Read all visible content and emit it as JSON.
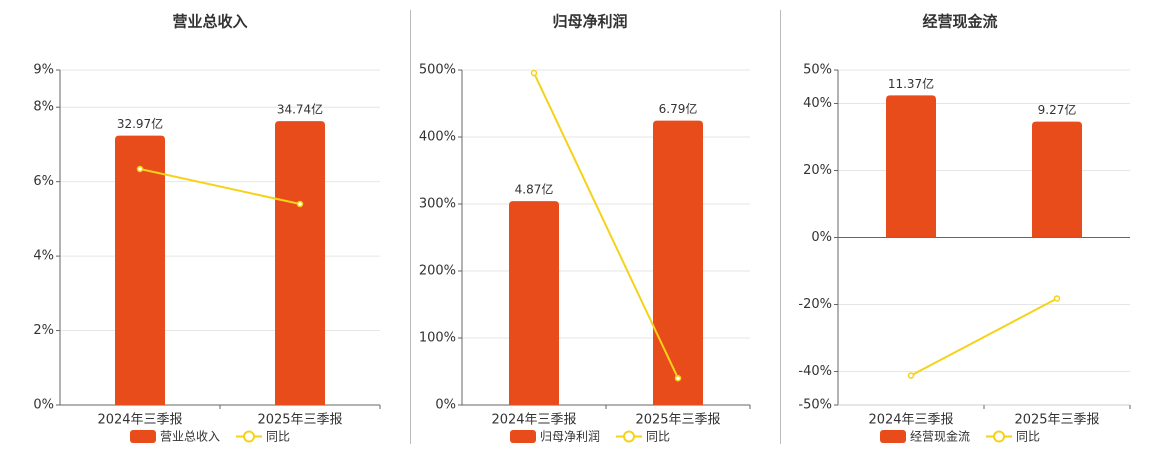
{
  "chart_data": [
    {
      "type": "combo",
      "title": "营业总收入",
      "categories": [
        "2024年三季报",
        "2025年三季报"
      ],
      "ylim": [
        0,
        9
      ],
      "yticks": [
        {
          "value": 0,
          "label": "0%"
        },
        {
          "value": 2,
          "label": "2%"
        },
        {
          "value": 4,
          "label": "4%"
        },
        {
          "value": 6,
          "label": "6%"
        },
        {
          "value": 8,
          "label": "8%"
        },
        {
          "value": 9,
          "label": "9%"
        }
      ],
      "y2lim": [
        0,
        41
      ],
      "grid": true,
      "series": [
        {
          "name": "营业总收入",
          "kind": "bar",
          "axis": "y2",
          "color": "#e84c1b",
          "values": [
            32.97,
            34.74
          ],
          "value_labels": [
            "32.97亿",
            "34.74亿"
          ]
        },
        {
          "name": "同比",
          "kind": "line",
          "color": "#f5d21a",
          "values": [
            6.34,
            5.4
          ]
        }
      ]
    },
    {
      "type": "combo",
      "title": "归母净利润",
      "categories": [
        "2024年三季报",
        "2025年三季报"
      ],
      "ylim": [
        0,
        500
      ],
      "yticks": [
        {
          "value": 0,
          "label": "0%"
        },
        {
          "value": 100,
          "label": "100%"
        },
        {
          "value": 200,
          "label": "200%"
        },
        {
          "value": 300,
          "label": "300%"
        },
        {
          "value": 400,
          "label": "400%"
        },
        {
          "value": 500,
          "label": "500%"
        }
      ],
      "y2lim": [
        0,
        8
      ],
      "grid": true,
      "series": [
        {
          "name": "归母净利润",
          "kind": "bar",
          "axis": "y2",
          "color": "#e84c1b",
          "values": [
            4.87,
            6.79
          ],
          "value_labels": [
            "4.87亿",
            "6.79亿"
          ]
        },
        {
          "name": "同比",
          "kind": "line",
          "color": "#f5d21a",
          "values": [
            495.5,
            40
          ]
        }
      ]
    },
    {
      "type": "combo",
      "title": "经营现金流",
      "categories": [
        "2024年三季报",
        "2025年三季报"
      ],
      "ylim": [
        -50,
        50
      ],
      "yticks": [
        {
          "value": -50,
          "label": "-50%"
        },
        {
          "value": -40,
          "label": "-40%"
        },
        {
          "value": -20,
          "label": "-20%"
        },
        {
          "value": 0,
          "label": "0%"
        },
        {
          "value": 20,
          "label": "20%"
        },
        {
          "value": 40,
          "label": "40%"
        },
        {
          "value": 50,
          "label": "50%"
        }
      ],
      "y2lim": [
        -13.4,
        13.4
      ],
      "grid": true,
      "series": [
        {
          "name": "经营现金流",
          "kind": "bar",
          "axis": "y2",
          "color": "#e84c1b",
          "values": [
            11.37,
            9.27
          ],
          "value_labels": [
            "11.37亿",
            "9.27亿"
          ]
        },
        {
          "name": "同比",
          "kind": "line",
          "color": "#f5d21a",
          "values": [
            -41.2,
            -18.2
          ]
        }
      ]
    }
  ]
}
